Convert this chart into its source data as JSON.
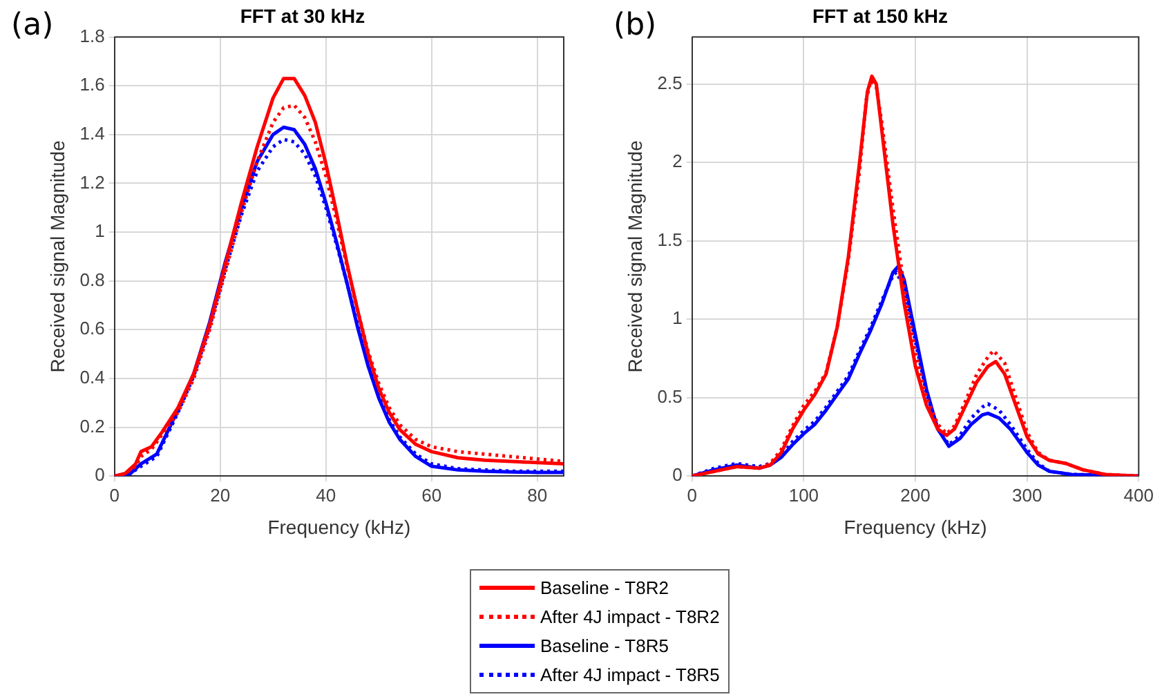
{
  "chart_data": [
    {
      "type": "line",
      "title": "FFT at 30 kHz",
      "xlabel": "Frequency (kHz)",
      "ylabel": "Received signal Magnitude",
      "annotations": [
        "(a)"
      ],
      "xlim": [
        0,
        85
      ],
      "xticks": [
        0,
        20,
        40,
        60,
        80
      ],
      "ylim": [
        0,
        1.8
      ],
      "yticks": [
        0,
        0.2,
        0.4,
        0.6,
        0.8,
        1,
        1.2,
        1.4,
        1.6,
        1.8
      ],
      "grid": true,
      "legend": "bottom",
      "marker": "none",
      "series": [
        {
          "name": "Baseline - T8R2",
          "color": "#ff0000",
          "line_style": "solid",
          "x": [
            0,
            2,
            4,
            5,
            7,
            9,
            12,
            15,
            18,
            21,
            24,
            27,
            30,
            32,
            34,
            36,
            38,
            40,
            42,
            44,
            46,
            48,
            50,
            52,
            54,
            57,
            60,
            65,
            70,
            75,
            80,
            85
          ],
          "values": [
            0,
            0.01,
            0.05,
            0.1,
            0.12,
            0.18,
            0.28,
            0.42,
            0.62,
            0.87,
            1.12,
            1.35,
            1.55,
            1.63,
            1.63,
            1.56,
            1.45,
            1.28,
            1.08,
            0.87,
            0.68,
            0.5,
            0.36,
            0.26,
            0.19,
            0.13,
            0.1,
            0.075,
            0.065,
            0.06,
            0.055,
            0.05
          ]
        },
        {
          "name": "After 4J impact - T8R2",
          "color": "#ff0000",
          "line_style": "dotted",
          "x": [
            0,
            2,
            4,
            5,
            7,
            9,
            12,
            15,
            18,
            21,
            24,
            27,
            30,
            32,
            34,
            36,
            38,
            40,
            42,
            44,
            46,
            48,
            50,
            52,
            54,
            57,
            60,
            65,
            70,
            75,
            80,
            85
          ],
          "values": [
            0,
            0.01,
            0.04,
            0.08,
            0.11,
            0.17,
            0.26,
            0.4,
            0.6,
            0.84,
            1.08,
            1.29,
            1.45,
            1.51,
            1.52,
            1.47,
            1.37,
            1.23,
            1.05,
            0.86,
            0.68,
            0.51,
            0.38,
            0.28,
            0.21,
            0.15,
            0.12,
            0.1,
            0.09,
            0.08,
            0.07,
            0.06
          ]
        },
        {
          "name": "Baseline - T8R5",
          "color": "#0000ff",
          "line_style": "solid",
          "x": [
            0,
            3,
            5,
            8,
            10,
            12,
            15,
            18,
            21,
            24,
            27,
            30,
            32,
            34,
            36,
            38,
            40,
            42,
            44,
            46,
            48,
            50,
            52,
            54,
            57,
            60,
            65,
            70,
            75,
            80,
            85
          ],
          "values": [
            0,
            0.01,
            0.05,
            0.09,
            0.18,
            0.27,
            0.42,
            0.63,
            0.88,
            1.1,
            1.29,
            1.4,
            1.43,
            1.42,
            1.36,
            1.26,
            1.12,
            0.96,
            0.79,
            0.61,
            0.45,
            0.32,
            0.22,
            0.15,
            0.08,
            0.04,
            0.025,
            0.02,
            0.017,
            0.015,
            0.015
          ]
        },
        {
          "name": "After 4J impact - T8R5",
          "color": "#0000ff",
          "line_style": "dotted",
          "x": [
            0,
            3,
            5,
            8,
            10,
            12,
            15,
            18,
            21,
            24,
            27,
            30,
            32,
            34,
            36,
            38,
            40,
            42,
            44,
            46,
            48,
            50,
            52,
            54,
            57,
            60,
            65,
            70,
            75,
            80,
            85
          ],
          "values": [
            0,
            0.01,
            0.04,
            0.08,
            0.17,
            0.26,
            0.41,
            0.61,
            0.85,
            1.07,
            1.25,
            1.35,
            1.38,
            1.37,
            1.32,
            1.23,
            1.1,
            0.95,
            0.79,
            0.62,
            0.46,
            0.33,
            0.23,
            0.16,
            0.09,
            0.05,
            0.03,
            0.025,
            0.02,
            0.02,
            0.02
          ]
        }
      ]
    },
    {
      "type": "line",
      "title": "FFT at 150 kHz",
      "xlabel": "Frequency (kHz)",
      "ylabel": "Received signal Magnitude",
      "annotations": [
        "(b)"
      ],
      "xlim": [
        0,
        400
      ],
      "xticks": [
        0,
        100,
        200,
        300,
        400
      ],
      "ylim": [
        0,
        2.8
      ],
      "yticks": [
        0,
        0.5,
        1,
        1.5,
        2,
        2.5
      ],
      "grid": true,
      "marker": "none",
      "series": [
        {
          "color": "#ff0000",
          "line_style": "solid",
          "x": [
            0,
            20,
            40,
            60,
            70,
            80,
            90,
            100,
            110,
            120,
            130,
            140,
            150,
            157,
            161,
            165,
            170,
            180,
            190,
            200,
            210,
            220,
            228,
            235,
            245,
            255,
            265,
            272,
            280,
            290,
            300,
            310,
            320,
            335,
            350,
            370,
            400
          ],
          "values": [
            0,
            0.03,
            0.06,
            0.05,
            0.07,
            0.15,
            0.3,
            0.42,
            0.52,
            0.65,
            0.95,
            1.4,
            2.0,
            2.45,
            2.55,
            2.5,
            2.2,
            1.6,
            1.1,
            0.7,
            0.45,
            0.3,
            0.26,
            0.3,
            0.45,
            0.6,
            0.7,
            0.73,
            0.65,
            0.45,
            0.25,
            0.14,
            0.1,
            0.08,
            0.04,
            0.01,
            0
          ]
        },
        {
          "color": "#ff0000",
          "line_style": "dotted",
          "x": [
            0,
            20,
            40,
            60,
            70,
            80,
            90,
            100,
            110,
            120,
            130,
            140,
            150,
            156,
            160,
            165,
            170,
            180,
            190,
            200,
            210,
            220,
            228,
            235,
            245,
            255,
            265,
            270,
            280,
            290,
            300,
            310,
            320,
            335,
            350,
            370,
            400
          ],
          "values": [
            0,
            0.03,
            0.06,
            0.05,
            0.08,
            0.17,
            0.32,
            0.45,
            0.54,
            0.66,
            0.95,
            1.38,
            1.95,
            2.4,
            2.52,
            2.48,
            2.25,
            1.7,
            1.2,
            0.78,
            0.5,
            0.33,
            0.27,
            0.32,
            0.48,
            0.65,
            0.76,
            0.8,
            0.72,
            0.5,
            0.28,
            0.15,
            0.1,
            0.08,
            0.04,
            0.01,
            0
          ]
        },
        {
          "color": "#0000ff",
          "line_style": "solid",
          "x": [
            0,
            20,
            40,
            60,
            70,
            80,
            90,
            100,
            110,
            120,
            130,
            140,
            150,
            160,
            170,
            180,
            185,
            190,
            200,
            210,
            220,
            230,
            240,
            250,
            260,
            265,
            275,
            285,
            300,
            310,
            320,
            340,
            400
          ],
          "values": [
            0,
            0.04,
            0.07,
            0.05,
            0.07,
            0.12,
            0.2,
            0.27,
            0.33,
            0.42,
            0.52,
            0.62,
            0.78,
            0.93,
            1.1,
            1.3,
            1.34,
            1.25,
            0.9,
            0.55,
            0.3,
            0.19,
            0.24,
            0.33,
            0.39,
            0.4,
            0.37,
            0.3,
            0.15,
            0.07,
            0.03,
            0.01,
            0
          ]
        },
        {
          "color": "#0000ff",
          "line_style": "dotted",
          "x": [
            0,
            20,
            40,
            60,
            70,
            80,
            90,
            100,
            110,
            120,
            130,
            140,
            150,
            160,
            170,
            180,
            183,
            190,
            200,
            210,
            220,
            230,
            240,
            250,
            260,
            265,
            275,
            285,
            300,
            310,
            320,
            340,
            400
          ],
          "values": [
            0,
            0.05,
            0.08,
            0.06,
            0.08,
            0.13,
            0.22,
            0.29,
            0.35,
            0.44,
            0.54,
            0.64,
            0.8,
            0.95,
            1.12,
            1.28,
            1.3,
            1.2,
            0.86,
            0.53,
            0.3,
            0.2,
            0.26,
            0.37,
            0.44,
            0.46,
            0.42,
            0.33,
            0.17,
            0.08,
            0.03,
            0.01,
            0
          ]
        }
      ]
    }
  ]
}
